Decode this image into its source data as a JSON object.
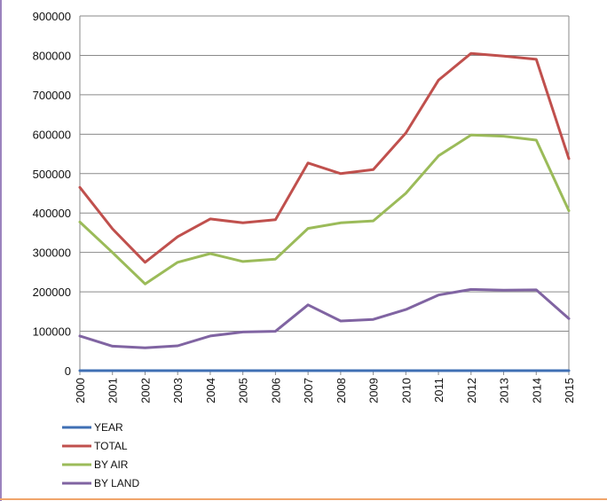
{
  "colors": {
    "year": "#3f6fb4",
    "total": "#c0504d",
    "by_air": "#9bbb59",
    "by_land": "#8064a2",
    "grid": "#8a8a8a",
    "frame_left": "#7a5aa8",
    "frame_bottom": "#f0a46a"
  },
  "chart_data": {
    "type": "line",
    "title": "",
    "xlabel": "",
    "ylabel": "",
    "x": [
      "2000",
      "2001",
      "2002",
      "2003",
      "2004",
      "2005",
      "2006",
      "2007",
      "2008",
      "2009",
      "2010",
      "2011",
      "2012",
      "2013",
      "2014",
      "2015"
    ],
    "ylim": [
      0,
      900000
    ],
    "yticks": [
      "0",
      "100000",
      "200000",
      "300000",
      "400000",
      "500000",
      "600000",
      "700000",
      "800000",
      "900000"
    ],
    "grid": true,
    "legend_position": "bottom-left",
    "series": [
      {
        "name": "YEAR",
        "color": "#3f6fb4",
        "values": [
          0,
          0,
          0,
          0,
          0,
          0,
          0,
          0,
          0,
          0,
          0,
          0,
          0,
          0,
          0,
          0
        ]
      },
      {
        "name": "TOTAL",
        "color": "#c0504d",
        "values": [
          465000,
          360000,
          275000,
          340000,
          385000,
          375000,
          383000,
          527000,
          500000,
          510000,
          603000,
          737000,
          805000,
          798000,
          790000,
          538000
        ]
      },
      {
        "name": "BY AIR",
        "color": "#9bbb59",
        "values": [
          377000,
          300000,
          220000,
          275000,
          297000,
          277000,
          283000,
          361000,
          375000,
          380000,
          450000,
          545000,
          598000,
          595000,
          585000,
          406000
        ]
      },
      {
        "name": "BY LAND",
        "color": "#8064a2",
        "values": [
          88000,
          62000,
          58000,
          63000,
          88000,
          98000,
          100000,
          167000,
          126000,
          130000,
          155000,
          192000,
          206000,
          204000,
          205000,
          132000
        ]
      }
    ]
  }
}
